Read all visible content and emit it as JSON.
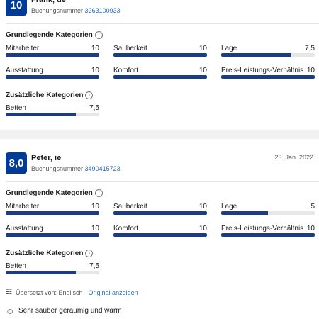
{
  "scale": [
    0,
    10
  ],
  "reviews": [
    {
      "score": "10",
      "name": "Frank, de",
      "booking_label": "Buchungsnummer",
      "booking_number": "3263100933",
      "basic_title": "Grundlegende Kategorien",
      "basic": [
        {
          "name": "Mitarbeiter",
          "score": 10,
          "label": "10"
        },
        {
          "name": "Sauberkeit",
          "score": 10,
          "label": "10"
        },
        {
          "name": "Lage",
          "score": 7.5,
          "label": "7,5"
        },
        {
          "name": "Ausstattung",
          "score": 10,
          "label": "10"
        },
        {
          "name": "Komfort",
          "score": 10,
          "label": "10"
        },
        {
          "name": "Preis-Leistungs-Verhältnis",
          "score": 10,
          "label": "10"
        }
      ],
      "extra_title": "Zusätzliche Kategorien",
      "extra": [
        {
          "name": "Betten",
          "score": 7.5,
          "label": "7,5"
        }
      ]
    },
    {
      "score": "8,0",
      "name": "Peter, ie",
      "date": "23. Jan. 2022",
      "booking_label": "Buchungsnummer",
      "booking_number": "3490415723",
      "basic_title": "Grundlegende Kategorien",
      "basic": [
        {
          "name": "Mitarbeiter",
          "score": 10,
          "label": "10"
        },
        {
          "name": "Sauberkeit",
          "score": 10,
          "label": "10"
        },
        {
          "name": "Lage",
          "score": 5,
          "label": "5"
        },
        {
          "name": "Ausstattung",
          "score": 10,
          "label": "10"
        },
        {
          "name": "Komfort",
          "score": 10,
          "label": "10"
        },
        {
          "name": "Preis-Leistungs-Verhältnis",
          "score": 10,
          "label": "10"
        }
      ],
      "extra_title": "Zusätzliche Kategorien",
      "extra": [
        {
          "name": "Betten",
          "score": 7.5,
          "label": "7,5"
        }
      ],
      "translation": "Übersetzt von: Englisch ·",
      "translation_link": "Original anzeigen",
      "positive": "Sehr sauber geräumig und warm"
    }
  ]
}
